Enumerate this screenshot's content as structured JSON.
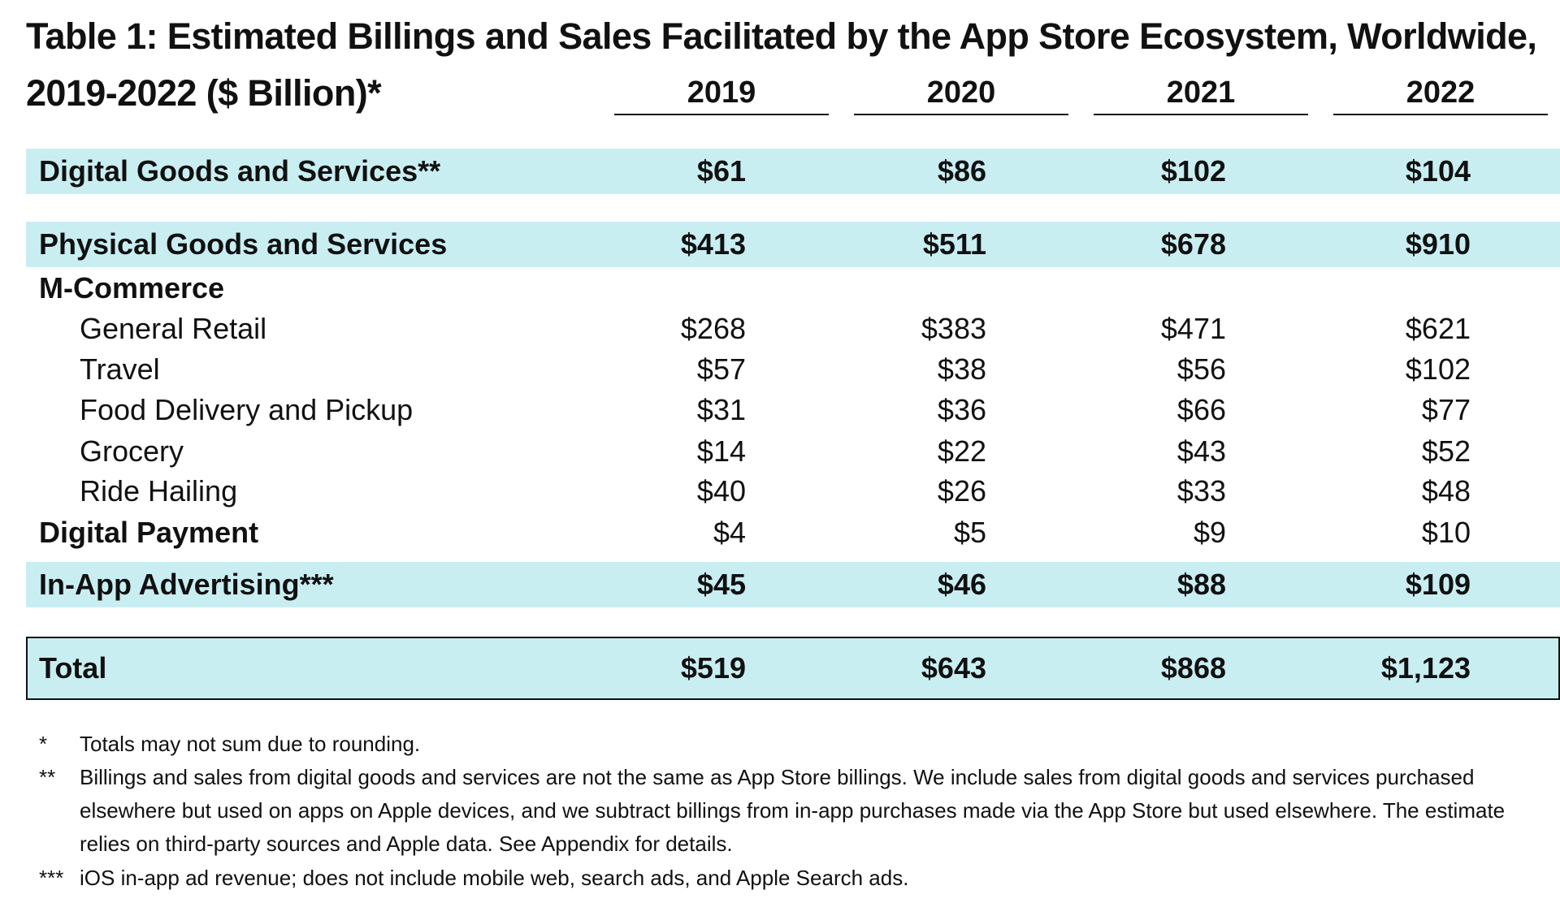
{
  "title": {
    "line1": "Table 1: Estimated Billings and Sales Facilitated by the App Store Ecosystem, Worldwide,",
    "line2": "2019-2022 ($ Billion)*"
  },
  "years": [
    "2019",
    "2020",
    "2021",
    "2022"
  ],
  "rows": {
    "digital_goods": {
      "label": "Digital Goods and Services**",
      "values": [
        "$61",
        "$86",
        "$102",
        "$104"
      ]
    },
    "physical_goods": {
      "label": "Physical Goods and Services",
      "values": [
        "$413",
        "$511",
        "$678",
        "$910"
      ]
    },
    "m_commerce": {
      "label": "M-Commerce"
    },
    "general_retail": {
      "label": "General Retail",
      "values": [
        "$268",
        "$383",
        "$471",
        "$621"
      ]
    },
    "travel": {
      "label": "Travel",
      "values": [
        "$57",
        "$38",
        "$56",
        "$102"
      ]
    },
    "food_delivery": {
      "label": "Food Delivery and Pickup",
      "values": [
        "$31",
        "$36",
        "$66",
        "$77"
      ]
    },
    "grocery": {
      "label": "Grocery",
      "values": [
        "$14",
        "$22",
        "$43",
        "$52"
      ]
    },
    "ride_hailing": {
      "label": "Ride Hailing",
      "values": [
        "$40",
        "$26",
        "$33",
        "$48"
      ]
    },
    "digital_payment": {
      "label": "Digital Payment",
      "values": [
        "$4",
        "$5",
        "$9",
        "$10"
      ]
    },
    "in_app_advertising": {
      "label": "In-App Advertising***",
      "values": [
        "$45",
        "$46",
        "$88",
        "$109"
      ]
    },
    "total": {
      "label": "Total",
      "values": [
        "$519",
        "$643",
        "$868",
        "$1,123"
      ]
    }
  },
  "footnotes": [
    {
      "mark": "*",
      "text": "Totals may not sum due to rounding."
    },
    {
      "mark": "**",
      "text": "Billings and sales from digital goods and services are not the same as App Store billings. We include sales from digital goods and services purchased elsewhere but used on apps on Apple devices, and we subtract billings from in-app purchases made via the App Store but used elsewhere. The estimate relies on third-party sources and Apple data. See Appendix for details."
    },
    {
      "mark": "***",
      "text": "iOS in-app ad revenue; does not include mobile web, search ads, and Apple Search ads."
    }
  ],
  "colors": {
    "band": "#c9eef2",
    "text": "#111111"
  }
}
